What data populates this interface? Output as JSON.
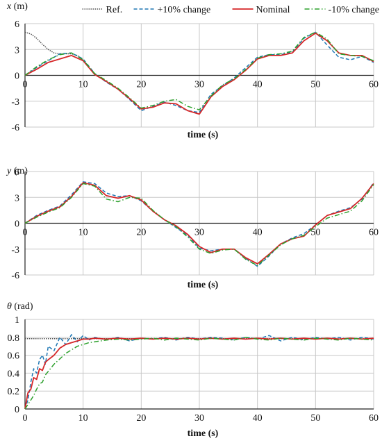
{
  "legend": {
    "position": "top",
    "entries": [
      {
        "label": "Ref.",
        "color": "#555555",
        "dash": "dotted"
      },
      {
        "label": "+10% change",
        "color": "#1f77b4",
        "dash": "dashed"
      },
      {
        "label": "Nominal",
        "color": "#d62728",
        "dash": "solid"
      },
      {
        "label": "-10% change",
        "color": "#2ca02c",
        "dash": "dashdot"
      }
    ]
  },
  "chart_data": [
    {
      "type": "line",
      "ylabel_var": "x",
      "ylabel_unit": " (m)",
      "xlabel": "time (s)",
      "xlim": [
        0,
        60
      ],
      "ylim": [
        -6,
        6
      ],
      "xticks": [
        0,
        10,
        20,
        30,
        40,
        50,
        60
      ],
      "yticks": [
        6,
        3,
        0,
        -3,
        -6
      ],
      "grid": true,
      "series": [
        {
          "name": "Ref.",
          "x": [
            0,
            1,
            2,
            3,
            4,
            5,
            6,
            7,
            8,
            9,
            10
          ],
          "y": [
            5.0,
            4.8,
            4.3,
            3.6,
            3.0,
            2.6,
            2.5,
            2.5,
            2.5,
            2.3,
            1.8
          ]
        },
        {
          "name": "+10% change",
          "x": [
            0,
            2,
            4,
            6,
            8,
            10,
            12,
            14,
            16,
            18,
            20,
            22,
            24,
            26,
            28,
            30,
            32,
            34,
            36,
            38,
            40,
            42,
            44,
            46,
            48,
            50,
            52,
            54,
            56,
            58,
            60
          ],
          "y": [
            0,
            0.9,
            1.7,
            2.5,
            2.6,
            1.9,
            0.2,
            -0.8,
            -1.6,
            -2.8,
            -4.1,
            -3.6,
            -3.1,
            -3.5,
            -4.1,
            -4.3,
            -2.2,
            -1.2,
            -0.3,
            0.9,
            2.1,
            2.4,
            2.4,
            2.7,
            4.3,
            5.0,
            3.5,
            2.1,
            1.8,
            2.2,
            1.5
          ]
        },
        {
          "name": "Nominal",
          "x": [
            0,
            2,
            4,
            6,
            8,
            10,
            12,
            14,
            16,
            18,
            20,
            22,
            24,
            26,
            28,
            30,
            32,
            34,
            36,
            38,
            40,
            42,
            44,
            46,
            48,
            50,
            52,
            54,
            56,
            58,
            60
          ],
          "y": [
            0,
            0.7,
            1.5,
            1.9,
            2.3,
            1.7,
            0.1,
            -0.7,
            -1.6,
            -2.7,
            -3.9,
            -3.7,
            -3.2,
            -3.3,
            -4.1,
            -4.5,
            -2.5,
            -1.3,
            -0.5,
            0.6,
            1.9,
            2.3,
            2.3,
            2.6,
            4.0,
            4.9,
            4.0,
            2.6,
            2.3,
            2.3,
            1.6
          ]
        },
        {
          "name": "-10% change",
          "x": [
            0,
            2,
            4,
            6,
            8,
            10,
            12,
            14,
            16,
            18,
            20,
            22,
            24,
            26,
            28,
            30,
            32,
            34,
            36,
            38,
            40,
            42,
            44,
            46,
            48,
            50,
            52,
            54,
            56,
            58,
            60
          ],
          "y": [
            0,
            1.0,
            1.8,
            2.4,
            2.6,
            1.8,
            0.2,
            -0.6,
            -1.5,
            -2.6,
            -3.8,
            -3.5,
            -3.0,
            -2.8,
            -3.6,
            -4.0,
            -2.4,
            -1.1,
            -0.4,
            0.7,
            2.0,
            2.4,
            2.5,
            2.8,
            4.4,
            5.0,
            4.2,
            2.5,
            2.3,
            2.2,
            1.7
          ]
        }
      ]
    },
    {
      "type": "line",
      "ylabel_var": "y",
      "ylabel_unit": " (m)",
      "xlabel": "time (s)",
      "xlim": [
        0,
        60
      ],
      "ylim": [
        -6,
        6
      ],
      "xticks": [
        0,
        10,
        20,
        30,
        40,
        50,
        60
      ],
      "yticks": [
        6,
        3,
        0,
        -3,
        -6
      ],
      "grid": true,
      "series": [
        {
          "name": "+10% change",
          "x": [
            0,
            2,
            4,
            6,
            8,
            10,
            12,
            14,
            16,
            18,
            20,
            22,
            24,
            26,
            28,
            30,
            32,
            34,
            36,
            38,
            40,
            42,
            44,
            46,
            48,
            50,
            52,
            54,
            56,
            58,
            60
          ],
          "y": [
            0,
            0.9,
            1.5,
            2.0,
            3.3,
            4.8,
            4.6,
            3.5,
            3.1,
            3.2,
            2.6,
            1.4,
            0.4,
            -0.5,
            -1.4,
            -2.9,
            -3.2,
            -3.0,
            -3.0,
            -4.1,
            -5.0,
            -3.8,
            -2.4,
            -1.7,
            -1.2,
            -0.2,
            0.9,
            1.4,
            1.8,
            2.8,
            4.7
          ]
        },
        {
          "name": "Nominal",
          "x": [
            0,
            2,
            4,
            6,
            8,
            10,
            12,
            14,
            16,
            18,
            20,
            22,
            24,
            26,
            28,
            30,
            32,
            34,
            36,
            38,
            40,
            42,
            44,
            46,
            48,
            50,
            52,
            54,
            56,
            58,
            60
          ],
          "y": [
            0,
            0.8,
            1.4,
            1.9,
            3.1,
            4.7,
            4.4,
            3.2,
            2.9,
            3.2,
            2.7,
            1.4,
            0.4,
            -0.3,
            -1.3,
            -2.7,
            -3.4,
            -3.0,
            -3.0,
            -4.0,
            -4.7,
            -3.6,
            -2.4,
            -1.8,
            -1.5,
            -0.2,
            0.9,
            1.3,
            1.7,
            2.9,
            4.6
          ]
        },
        {
          "name": "-10% change",
          "x": [
            0,
            2,
            4,
            6,
            8,
            10,
            12,
            14,
            16,
            18,
            20,
            22,
            24,
            26,
            28,
            30,
            32,
            34,
            36,
            38,
            40,
            42,
            44,
            46,
            48,
            50,
            52,
            54,
            56,
            58,
            60
          ],
          "y": [
            0,
            0.7,
            1.3,
            1.8,
            3.0,
            4.6,
            4.3,
            2.8,
            2.5,
            3.0,
            2.9,
            1.5,
            0.4,
            -0.4,
            -1.6,
            -3.0,
            -3.5,
            -3.1,
            -3.0,
            -4.2,
            -4.9,
            -3.7,
            -2.5,
            -1.8,
            -1.4,
            -0.4,
            0.6,
            1.0,
            1.4,
            2.6,
            4.5
          ]
        }
      ]
    },
    {
      "type": "line",
      "ylabel_var": "θ",
      "ylabel_unit": " (rad)",
      "xlabel": "time (s)",
      "xlim": [
        0,
        60
      ],
      "ylim": [
        0,
        1
      ],
      "xticks": [
        0,
        10,
        20,
        30,
        40,
        50,
        60
      ],
      "yticks": [
        "1",
        "0.8",
        "0.6",
        "0.4",
        "0.2",
        "0"
      ],
      "grid": true,
      "series": [
        {
          "name": "Ref.",
          "x": [
            0,
            60
          ],
          "y": [
            0.785,
            0.785
          ]
        },
        {
          "name": "+10% change",
          "x": [
            0,
            0.5,
            1,
            1.5,
            2,
            2.5,
            3,
            3.5,
            4,
            5,
            6,
            7,
            8,
            9,
            10,
            11,
            12,
            14,
            16,
            18,
            20,
            22,
            24,
            26,
            28,
            30,
            32,
            34,
            36,
            38,
            40,
            42,
            44,
            46,
            48,
            50,
            52,
            54,
            56,
            58,
            60
          ],
          "y": [
            0,
            0.1,
            0.3,
            0.45,
            0.4,
            0.55,
            0.6,
            0.5,
            0.7,
            0.65,
            0.8,
            0.72,
            0.83,
            0.75,
            0.82,
            0.77,
            0.8,
            0.77,
            0.8,
            0.76,
            0.79,
            0.78,
            0.8,
            0.77,
            0.8,
            0.78,
            0.8,
            0.79,
            0.77,
            0.8,
            0.78,
            0.82,
            0.76,
            0.8,
            0.77,
            0.8,
            0.78,
            0.8,
            0.77,
            0.8,
            0.78
          ]
        },
        {
          "name": "Nominal",
          "x": [
            0,
            0.5,
            1,
            1.5,
            2,
            2.5,
            3,
            3.5,
            4,
            5,
            6,
            7,
            8,
            9,
            10,
            11,
            12,
            14,
            16,
            18,
            20,
            22,
            24,
            26,
            28,
            30,
            32,
            34,
            36,
            38,
            40,
            42,
            44,
            46,
            48,
            50,
            52,
            54,
            56,
            58,
            60
          ],
          "y": [
            0,
            0.18,
            0.22,
            0.35,
            0.33,
            0.45,
            0.43,
            0.52,
            0.55,
            0.6,
            0.68,
            0.72,
            0.74,
            0.76,
            0.78,
            0.78,
            0.79,
            0.78,
            0.79,
            0.78,
            0.79,
            0.78,
            0.79,
            0.78,
            0.79,
            0.78,
            0.79,
            0.78,
            0.79,
            0.78,
            0.79,
            0.78,
            0.79,
            0.78,
            0.79,
            0.78,
            0.79,
            0.78,
            0.79,
            0.78,
            0.79
          ]
        },
        {
          "name": "-10% change",
          "x": [
            0,
            0.5,
            1,
            1.5,
            2,
            2.5,
            3,
            3.5,
            4,
            5,
            6,
            7,
            8,
            9,
            10,
            11,
            12,
            14,
            16,
            18,
            20,
            22,
            24,
            26,
            28,
            30,
            32,
            34,
            36,
            38,
            40,
            42,
            44,
            46,
            48,
            50,
            52,
            54,
            56,
            58,
            60
          ],
          "y": [
            0,
            0.05,
            0.1,
            0.15,
            0.22,
            0.28,
            0.3,
            0.38,
            0.42,
            0.5,
            0.56,
            0.62,
            0.66,
            0.7,
            0.72,
            0.74,
            0.75,
            0.77,
            0.78,
            0.77,
            0.78,
            0.79,
            0.77,
            0.79,
            0.78,
            0.77,
            0.79,
            0.78,
            0.77,
            0.8,
            0.78,
            0.77,
            0.79,
            0.78,
            0.77,
            0.79,
            0.78,
            0.77,
            0.79,
            0.78,
            0.77
          ]
        }
      ]
    }
  ]
}
